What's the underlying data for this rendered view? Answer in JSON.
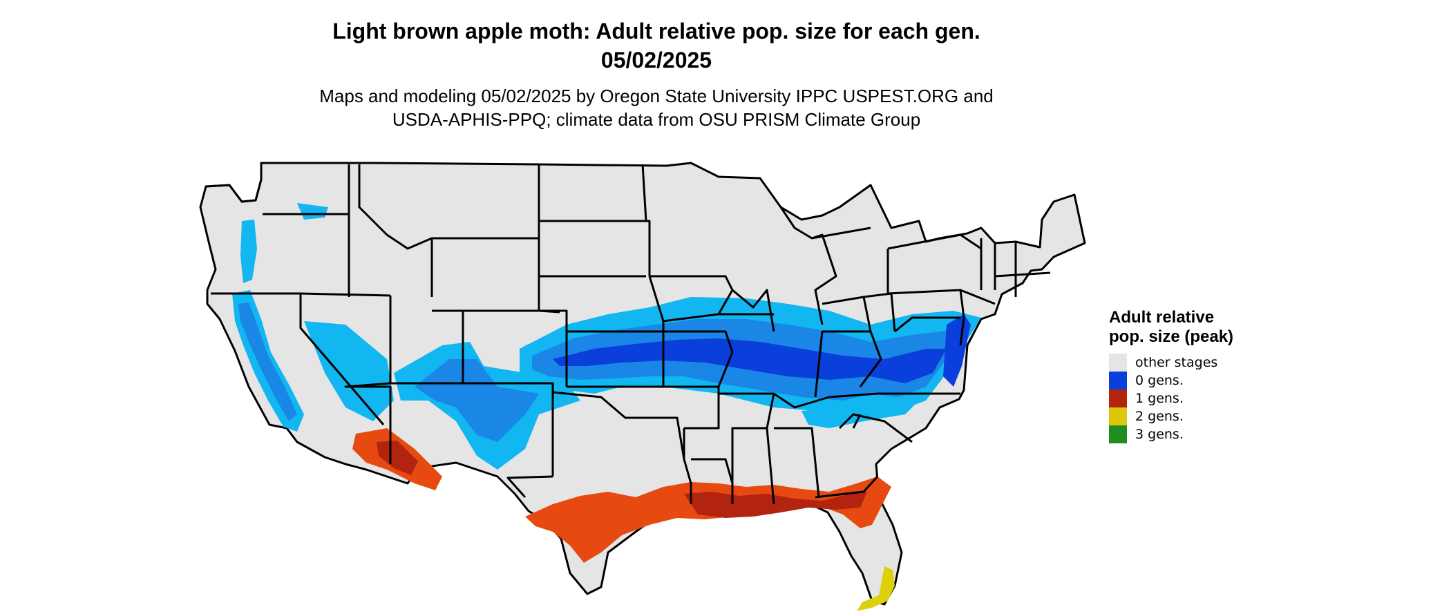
{
  "title_line1": "Light brown apple moth: Adult relative pop. size for each gen.",
  "title_line2": "05/02/2025",
  "subtitle_line1": "Maps and modeling 05/02/2025 by Oregon State University IPPC USPEST.ORG and",
  "subtitle_line2": "USDA-APHIS-PPQ; climate data from OSU PRISM Climate Group",
  "legend": {
    "title": "Adult relative pop. size (peak)",
    "items": [
      {
        "label": "other stages",
        "color": "#e5e5e5"
      },
      {
        "label": "0 gens.",
        "color": "#0a3fdb"
      },
      {
        "label": "1 gens.",
        "color": "#b22410"
      },
      {
        "label": "2 gens.",
        "color": "#dcc70a"
      },
      {
        "label": "3 gens.",
        "color": "#228b22"
      }
    ]
  },
  "map_colors": {
    "land": "#e5e5e5",
    "border": "#000000",
    "cyan": "#12b6f0",
    "mid_blue": "#1a86e6",
    "deep_blue": "#0a3fdb",
    "orange_red": "#e64a10",
    "dark_red": "#b22410",
    "yellow": "#dcd00a"
  }
}
